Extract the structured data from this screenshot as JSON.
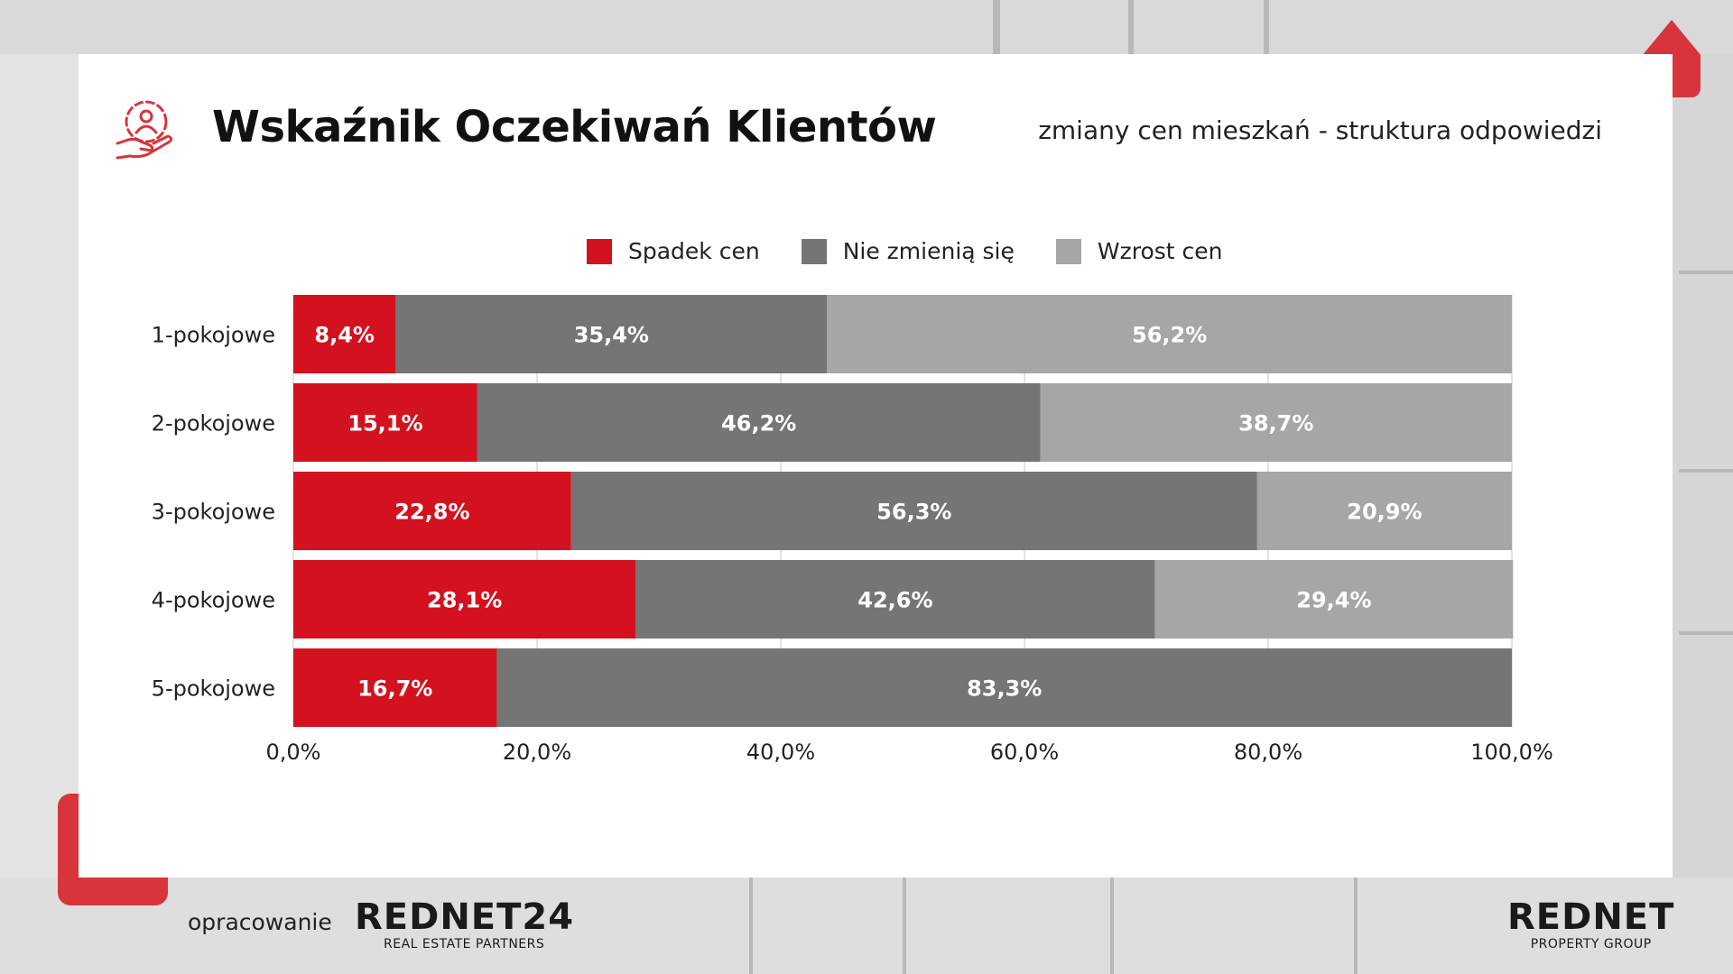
{
  "header": {
    "title": "Wskaźnik Oczekiwań Klientów",
    "subtitle": "zmiany cen mieszkań - struktura odpowiedzi",
    "icon": "customer-cycle-icon"
  },
  "colors": {
    "spadek": "#d4111e",
    "bez_zmian": "#757575",
    "wzrost": "#a6a6a6",
    "accent": "#d8343c"
  },
  "chart_data": {
    "type": "bar",
    "orientation": "horizontal",
    "stacked": true,
    "categories": [
      "1-pokojowe",
      "2-pokojowe",
      "3-pokojowe",
      "4-pokojowe",
      "5-pokojowe"
    ],
    "series": [
      {
        "name": "Spadek cen",
        "color": "#d4111e",
        "values": [
          8.4,
          15.1,
          22.8,
          28.1,
          16.7
        ],
        "labels": [
          "8,4%",
          "15,1%",
          "22,8%",
          "28,1%",
          "16,7%"
        ]
      },
      {
        "name": "Nie zmienią się",
        "color": "#757575",
        "values": [
          35.4,
          46.2,
          56.3,
          42.6,
          83.3
        ],
        "labels": [
          "35,4%",
          "46,2%",
          "56,3%",
          "42,6%",
          "83,3%"
        ]
      },
      {
        "name": "Wzrost cen",
        "color": "#a6a6a6",
        "values": [
          56.2,
          38.7,
          20.9,
          29.4,
          0
        ],
        "labels": [
          "56,2%",
          "38,7%",
          "20,9%",
          "29,4%",
          ""
        ]
      }
    ],
    "xlim": [
      0,
      100
    ],
    "xticks": [
      "0,0%",
      "20,0%",
      "40,0%",
      "60,0%",
      "80,0%",
      "100,0%"
    ],
    "legend_position": "top",
    "grid": true
  },
  "footer": {
    "prepared_by": "opracowanie",
    "logo_left": {
      "main": "REDNET24",
      "sub": "REAL ESTATE PARTNERS"
    },
    "logo_right": {
      "main": "REDNET",
      "sub": "PROPERTY GROUP"
    }
  }
}
